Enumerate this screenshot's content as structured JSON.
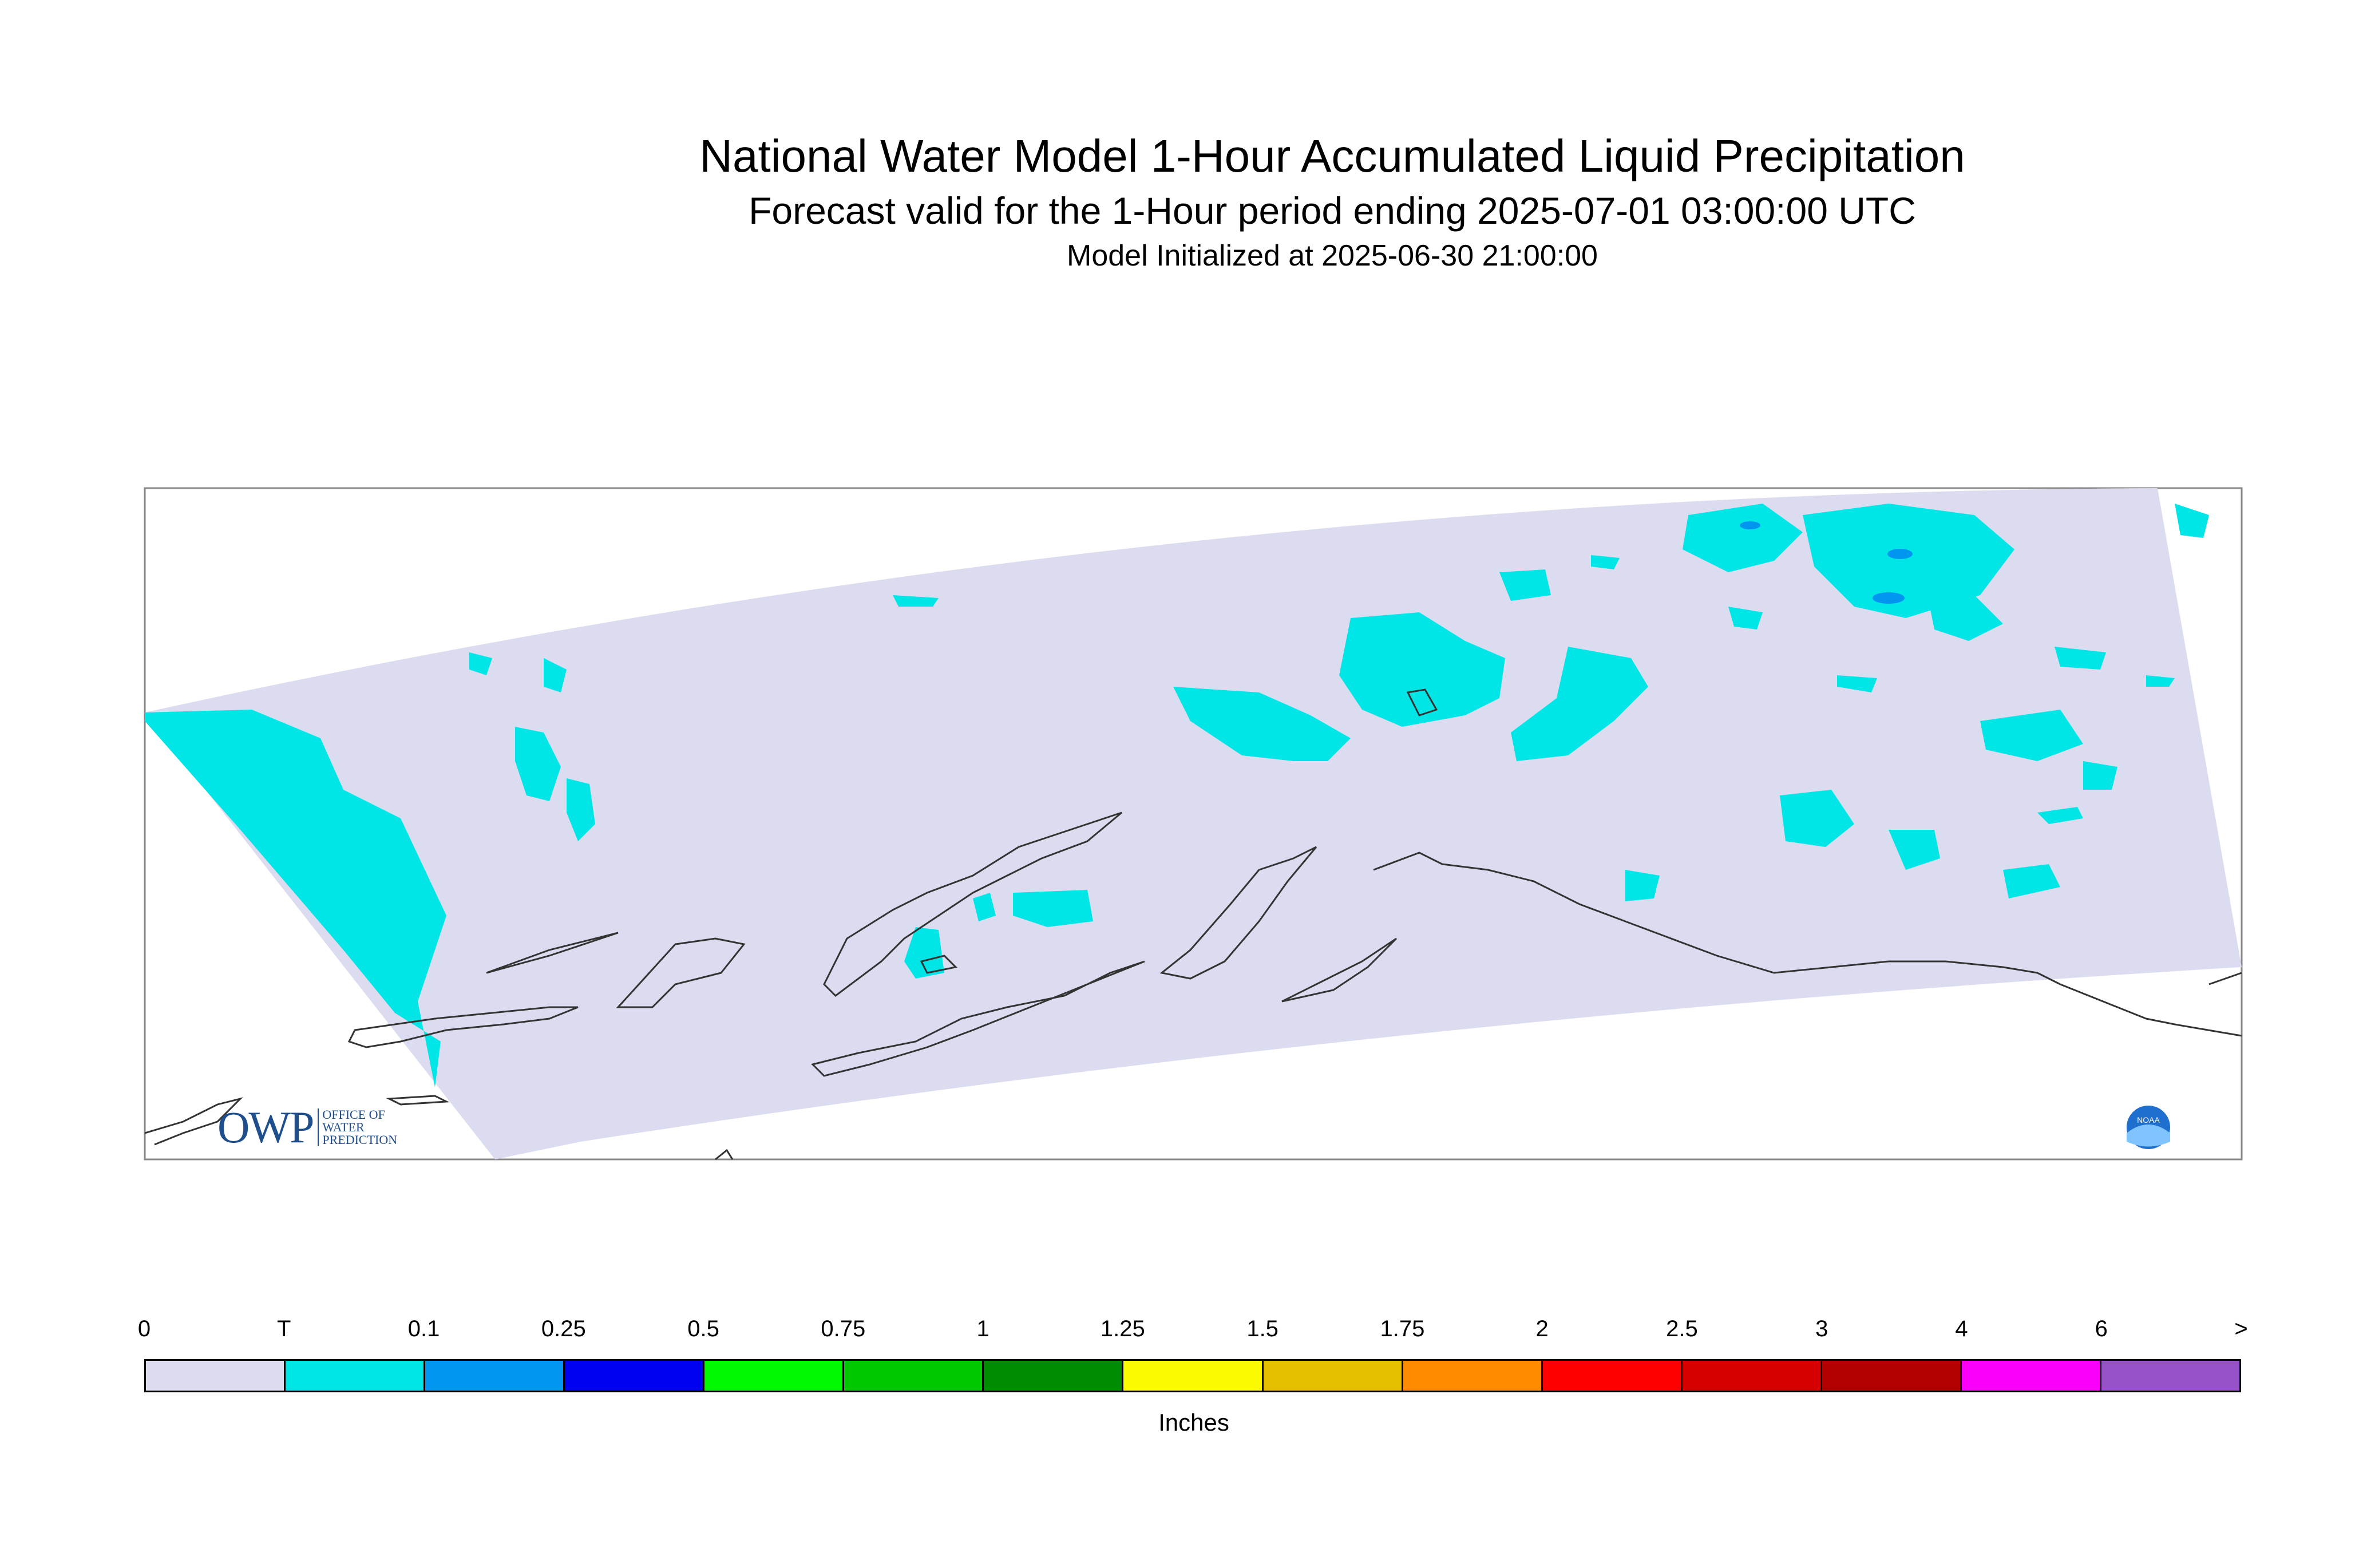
{
  "title": "National Water Model 1-Hour Accumulated Liquid Precipitation",
  "subtitle": "Forecast valid for the 1-Hour period ending 2025-07-01 03:00:00 UTC",
  "init_text": "Model Initialized at 2025-06-30 21:00:00",
  "colorbar": {
    "units": "Inches",
    "labels": [
      "0",
      "T",
      "0.1",
      "0.25",
      "0.5",
      "0.75",
      "1",
      "1.25",
      "1.5",
      "1.75",
      "2",
      "2.5",
      "3",
      "4",
      "6",
      ">"
    ],
    "colors": [
      "#dcdcf0",
      "#00e6e6",
      "#0096f0",
      "#0000f0",
      "#00fa00",
      "#00c800",
      "#008c00",
      "#fafa00",
      "#e6be00",
      "#ff8c00",
      "#ff0000",
      "#d70000",
      "#b40000",
      "#fa00fa",
      "#9650c8"
    ]
  },
  "logos": {
    "owp_big": "OWP",
    "owp_small": [
      "OFFICE OF",
      "WATER",
      "PREDICTION"
    ],
    "noaa": "NOAA"
  },
  "colors": {
    "domain_fill": "#dcdcf0",
    "trace": "#00e6e6",
    "light_rain": "#0096f0"
  }
}
